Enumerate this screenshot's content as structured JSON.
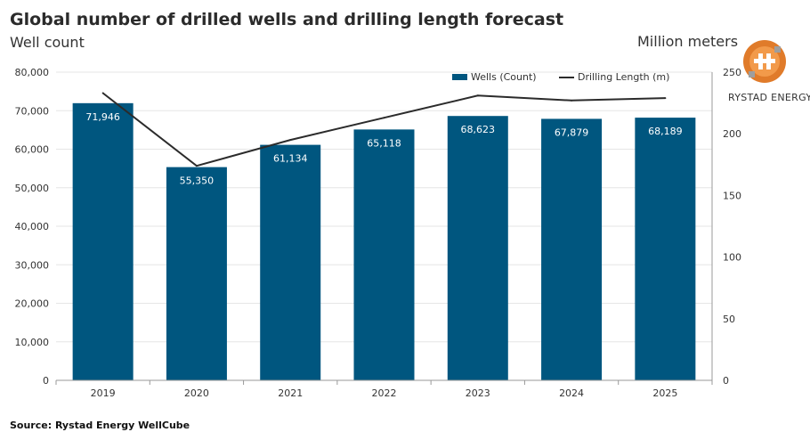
{
  "header": {
    "title": "Global number of drilled wells and drilling length forecast",
    "subtitle": "Well count",
    "y2_title": "Million meters"
  },
  "logo": {
    "text": "RYSTAD ENERGY"
  },
  "footer": {
    "source": "Source: Rystad Energy WellCube"
  },
  "colors": {
    "bar": "#00567f",
    "line": "#2b2b2b",
    "grid": "#e6e6e6",
    "axis": "#999999"
  },
  "chart_data": {
    "type": "bar",
    "categories": [
      "2019",
      "2020",
      "2021",
      "2022",
      "2023",
      "2024",
      "2025"
    ],
    "series": [
      {
        "name": "Wells (Count)",
        "type": "bar",
        "axis": "left",
        "values": [
          71946,
          55350,
          61134,
          65118,
          68623,
          67879,
          68189
        ],
        "labels": [
          "71,946",
          "55,350",
          "61,134",
          "65,118",
          "68,623",
          "67,879",
          "68,189"
        ]
      },
      {
        "name": "Drilling Length (m)",
        "type": "line",
        "axis": "right",
        "values": [
          233,
          174,
          195,
          213,
          231,
          227,
          229
        ]
      }
    ],
    "ylim": [
      0,
      80000
    ],
    "yticks": [
      "0",
      "10,000",
      "20,000",
      "30,000",
      "40,000",
      "50,000",
      "60,000",
      "70,000",
      "80,000"
    ],
    "y2lim": [
      0,
      250
    ],
    "y2ticks": [
      "0",
      "50",
      "100",
      "150",
      "200",
      "250"
    ],
    "grid": true,
    "legend": "top-right"
  }
}
